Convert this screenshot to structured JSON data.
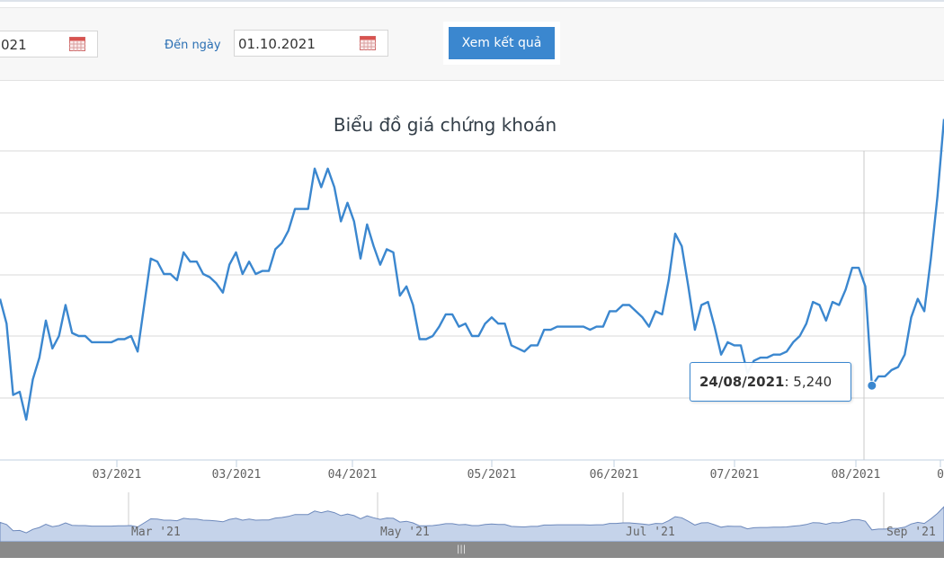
{
  "filter": {
    "from_value": "021",
    "to_label": "Đến ngày",
    "to_value": "01.10.2021",
    "submit_label": "Xem kết quả"
  },
  "icons": {
    "calendar": "calendar-icon",
    "scroll_grip": "grip-icon"
  },
  "colors": {
    "line": "#3b87cf",
    "button": "#3b87cf",
    "navigator_fill": "#c5d3ea",
    "navigator_line": "#6d89bc"
  },
  "tooltip": {
    "date": "24/08/2021",
    "value": "5,240"
  },
  "navigator": {
    "labels": [
      "Mar '21",
      "May '21",
      "Jul '21",
      "Sep '21"
    ]
  },
  "scrollbar": {
    "grip": "|||"
  },
  "chart_data": {
    "type": "line",
    "title": "Biểu đồ giá chứng khoán",
    "x_tick_labels": [
      "03/2021",
      "03/2021",
      "04/2021",
      "05/2021",
      "06/2021",
      "07/2021",
      "08/2021",
      "0"
    ],
    "series": [
      {
        "values": [
          5520,
          5440,
          5210,
          5220,
          5130,
          5260,
          5330,
          5450,
          5360,
          5400,
          5500,
          5410,
          5400,
          5400,
          5380,
          5380,
          5380,
          5380,
          5390,
          5390,
          5400,
          5350,
          5500,
          5650,
          5640,
          5600,
          5600,
          5580,
          5670,
          5640,
          5640,
          5600,
          5590,
          5570,
          5540,
          5630,
          5670,
          5600,
          5640,
          5600,
          5610,
          5610,
          5680,
          5700,
          5740,
          5810,
          5810,
          5810,
          5940,
          5880,
          5940,
          5880,
          5770,
          5830,
          5770,
          5650,
          5760,
          5690,
          5630,
          5680,
          5670,
          5530,
          5560,
          5500,
          5390,
          5390,
          5400,
          5430,
          5470,
          5470,
          5430,
          5440,
          5400,
          5400,
          5440,
          5460,
          5440,
          5440,
          5370,
          5360,
          5350,
          5370,
          5370,
          5420,
          5420,
          5430,
          5430,
          5430,
          5430,
          5430,
          5420,
          5430,
          5430,
          5480,
          5480,
          5500,
          5500,
          5480,
          5460,
          5430,
          5480,
          5470,
          5580,
          5730,
          5690,
          5560,
          5420,
          5500,
          5510,
          5430,
          5340,
          5380,
          5370,
          5370,
          5280,
          5320,
          5330,
          5330,
          5340,
          5340,
          5350,
          5380,
          5400,
          5440,
          5510,
          5500,
          5450,
          5510,
          5500,
          5550,
          5620,
          5620,
          5560,
          5240,
          5270,
          5270,
          5290,
          5300,
          5340,
          5460,
          5520,
          5480,
          5650,
          5850,
          6100
        ]
      }
    ]
  }
}
